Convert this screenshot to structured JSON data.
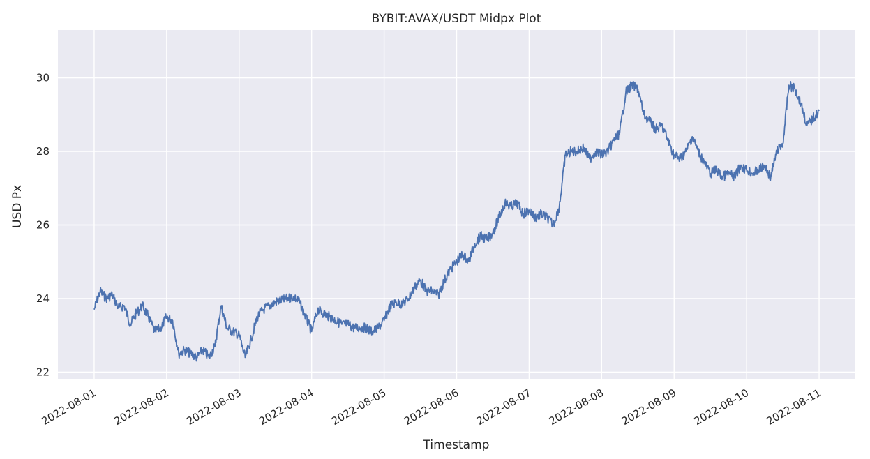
{
  "chart_data": {
    "type": "line",
    "title": "BYBIT:AVAX/USDT Midpx Plot",
    "xlabel": "Timestamp",
    "ylabel": "USD Px",
    "x_ticks": [
      "2022-08-01",
      "2022-08-02",
      "2022-08-03",
      "2022-08-04",
      "2022-08-05",
      "2022-08-06",
      "2022-08-07",
      "2022-08-08",
      "2022-08-09",
      "2022-08-10",
      "2022-08-11"
    ],
    "y_ticks": [
      22,
      24,
      26,
      28,
      30
    ],
    "xlim": [
      "2022-07-31T12:00",
      "2022-08-11T12:00"
    ],
    "ylim": [
      21.8,
      31.3
    ],
    "grid": true,
    "background": "#eaeaf2",
    "line_color": "#4c72b0",
    "series": [
      {
        "x": [
          "2022-08-01T00:00",
          "2022-08-01T02:00",
          "2022-08-01T04:00",
          "2022-08-01T06:00",
          "2022-08-01T08:00",
          "2022-08-01T10:00",
          "2022-08-01T12:00",
          "2022-08-01T14:00",
          "2022-08-01T16:00",
          "2022-08-01T18:00",
          "2022-08-01T20:00",
          "2022-08-01T22:00",
          "2022-08-02T00:00",
          "2022-08-02T02:00",
          "2022-08-02T04:00",
          "2022-08-02T06:00",
          "2022-08-02T08:00",
          "2022-08-02T10:00",
          "2022-08-02T12:00",
          "2022-08-02T14:00",
          "2022-08-02T16:00",
          "2022-08-02T18:00",
          "2022-08-02T20:00",
          "2022-08-02T22:00",
          "2022-08-03T00:00",
          "2022-08-03T02:00",
          "2022-08-03T04:00",
          "2022-08-03T06:00",
          "2022-08-03T08:00",
          "2022-08-03T10:00",
          "2022-08-03T12:00",
          "2022-08-03T14:00",
          "2022-08-03T16:00",
          "2022-08-03T18:00",
          "2022-08-03T20:00",
          "2022-08-03T22:00",
          "2022-08-04T00:00",
          "2022-08-04T02:00",
          "2022-08-04T04:00",
          "2022-08-04T06:00",
          "2022-08-04T08:00",
          "2022-08-04T10:00",
          "2022-08-04T12:00",
          "2022-08-04T14:00",
          "2022-08-04T16:00",
          "2022-08-04T18:00",
          "2022-08-04T20:00",
          "2022-08-04T22:00",
          "2022-08-05T00:00",
          "2022-08-05T02:00",
          "2022-08-05T04:00",
          "2022-08-05T06:00",
          "2022-08-05T08:00",
          "2022-08-05T10:00",
          "2022-08-05T12:00",
          "2022-08-05T14:00",
          "2022-08-05T16:00",
          "2022-08-05T18:00",
          "2022-08-05T20:00",
          "2022-08-05T22:00",
          "2022-08-06T00:00",
          "2022-08-06T02:00",
          "2022-08-06T04:00",
          "2022-08-06T06:00",
          "2022-08-06T08:00",
          "2022-08-06T10:00",
          "2022-08-06T12:00",
          "2022-08-06T14:00",
          "2022-08-06T16:00",
          "2022-08-06T18:00",
          "2022-08-06T20:00",
          "2022-08-06T22:00",
          "2022-08-07T00:00",
          "2022-08-07T02:00",
          "2022-08-07T04:00",
          "2022-08-07T06:00",
          "2022-08-07T08:00",
          "2022-08-07T10:00",
          "2022-08-07T12:00",
          "2022-08-07T14:00",
          "2022-08-07T16:00",
          "2022-08-07T18:00",
          "2022-08-07T20:00",
          "2022-08-07T22:00",
          "2022-08-08T00:00",
          "2022-08-08T02:00",
          "2022-08-08T04:00",
          "2022-08-08T06:00",
          "2022-08-08T08:00",
          "2022-08-08T10:00",
          "2022-08-08T12:00",
          "2022-08-08T14:00",
          "2022-08-08T16:00",
          "2022-08-08T18:00",
          "2022-08-08T20:00",
          "2022-08-08T22:00",
          "2022-08-09T00:00",
          "2022-08-09T02:00",
          "2022-08-09T04:00",
          "2022-08-09T06:00",
          "2022-08-09T08:00",
          "2022-08-09T10:00",
          "2022-08-09T12:00",
          "2022-08-09T14:00",
          "2022-08-09T16:00",
          "2022-08-09T18:00",
          "2022-08-09T20:00",
          "2022-08-09T22:00",
          "2022-08-10T00:00",
          "2022-08-10T02:00",
          "2022-08-10T04:00",
          "2022-08-10T06:00",
          "2022-08-10T08:00",
          "2022-08-10T10:00",
          "2022-08-10T12:00",
          "2022-08-10T14:00",
          "2022-08-10T16:00",
          "2022-08-10T18:00",
          "2022-08-10T20:00",
          "2022-08-10T22:00",
          "2022-08-11T00:00"
        ],
        "y": [
          23.7,
          24.2,
          24.0,
          24.1,
          23.75,
          23.8,
          23.3,
          23.6,
          23.8,
          23.5,
          23.1,
          23.2,
          23.5,
          23.4,
          22.5,
          22.6,
          22.5,
          22.4,
          22.6,
          22.4,
          22.7,
          23.8,
          23.2,
          23.1,
          23.0,
          22.4,
          22.9,
          23.5,
          23.7,
          23.8,
          23.9,
          23.95,
          24.0,
          24.05,
          23.9,
          23.5,
          23.1,
          23.7,
          23.6,
          23.5,
          23.4,
          23.3,
          23.3,
          23.2,
          23.2,
          23.2,
          23.1,
          23.2,
          23.4,
          23.8,
          23.9,
          23.85,
          24.0,
          24.3,
          24.5,
          24.2,
          24.2,
          24.1,
          24.5,
          24.8,
          25.0,
          25.2,
          25.0,
          25.5,
          25.7,
          25.6,
          25.8,
          26.2,
          26.6,
          26.5,
          26.6,
          26.3,
          26.4,
          26.2,
          26.3,
          26.2,
          26.0,
          26.5,
          27.9,
          28.0,
          28.0,
          28.1,
          27.8,
          28.0,
          27.9,
          28.0,
          28.3,
          28.5,
          29.6,
          29.8,
          29.7,
          29.0,
          28.8,
          28.6,
          28.7,
          28.3,
          27.9,
          27.8,
          28.0,
          28.4,
          28.0,
          27.7,
          27.4,
          27.5,
          27.3,
          27.4,
          27.3,
          27.6,
          27.5,
          27.4,
          27.5,
          27.6,
          27.3,
          28.0,
          28.2,
          29.8,
          29.7,
          29.3,
          28.7,
          28.9,
          29.1
        ]
      }
    ]
  }
}
